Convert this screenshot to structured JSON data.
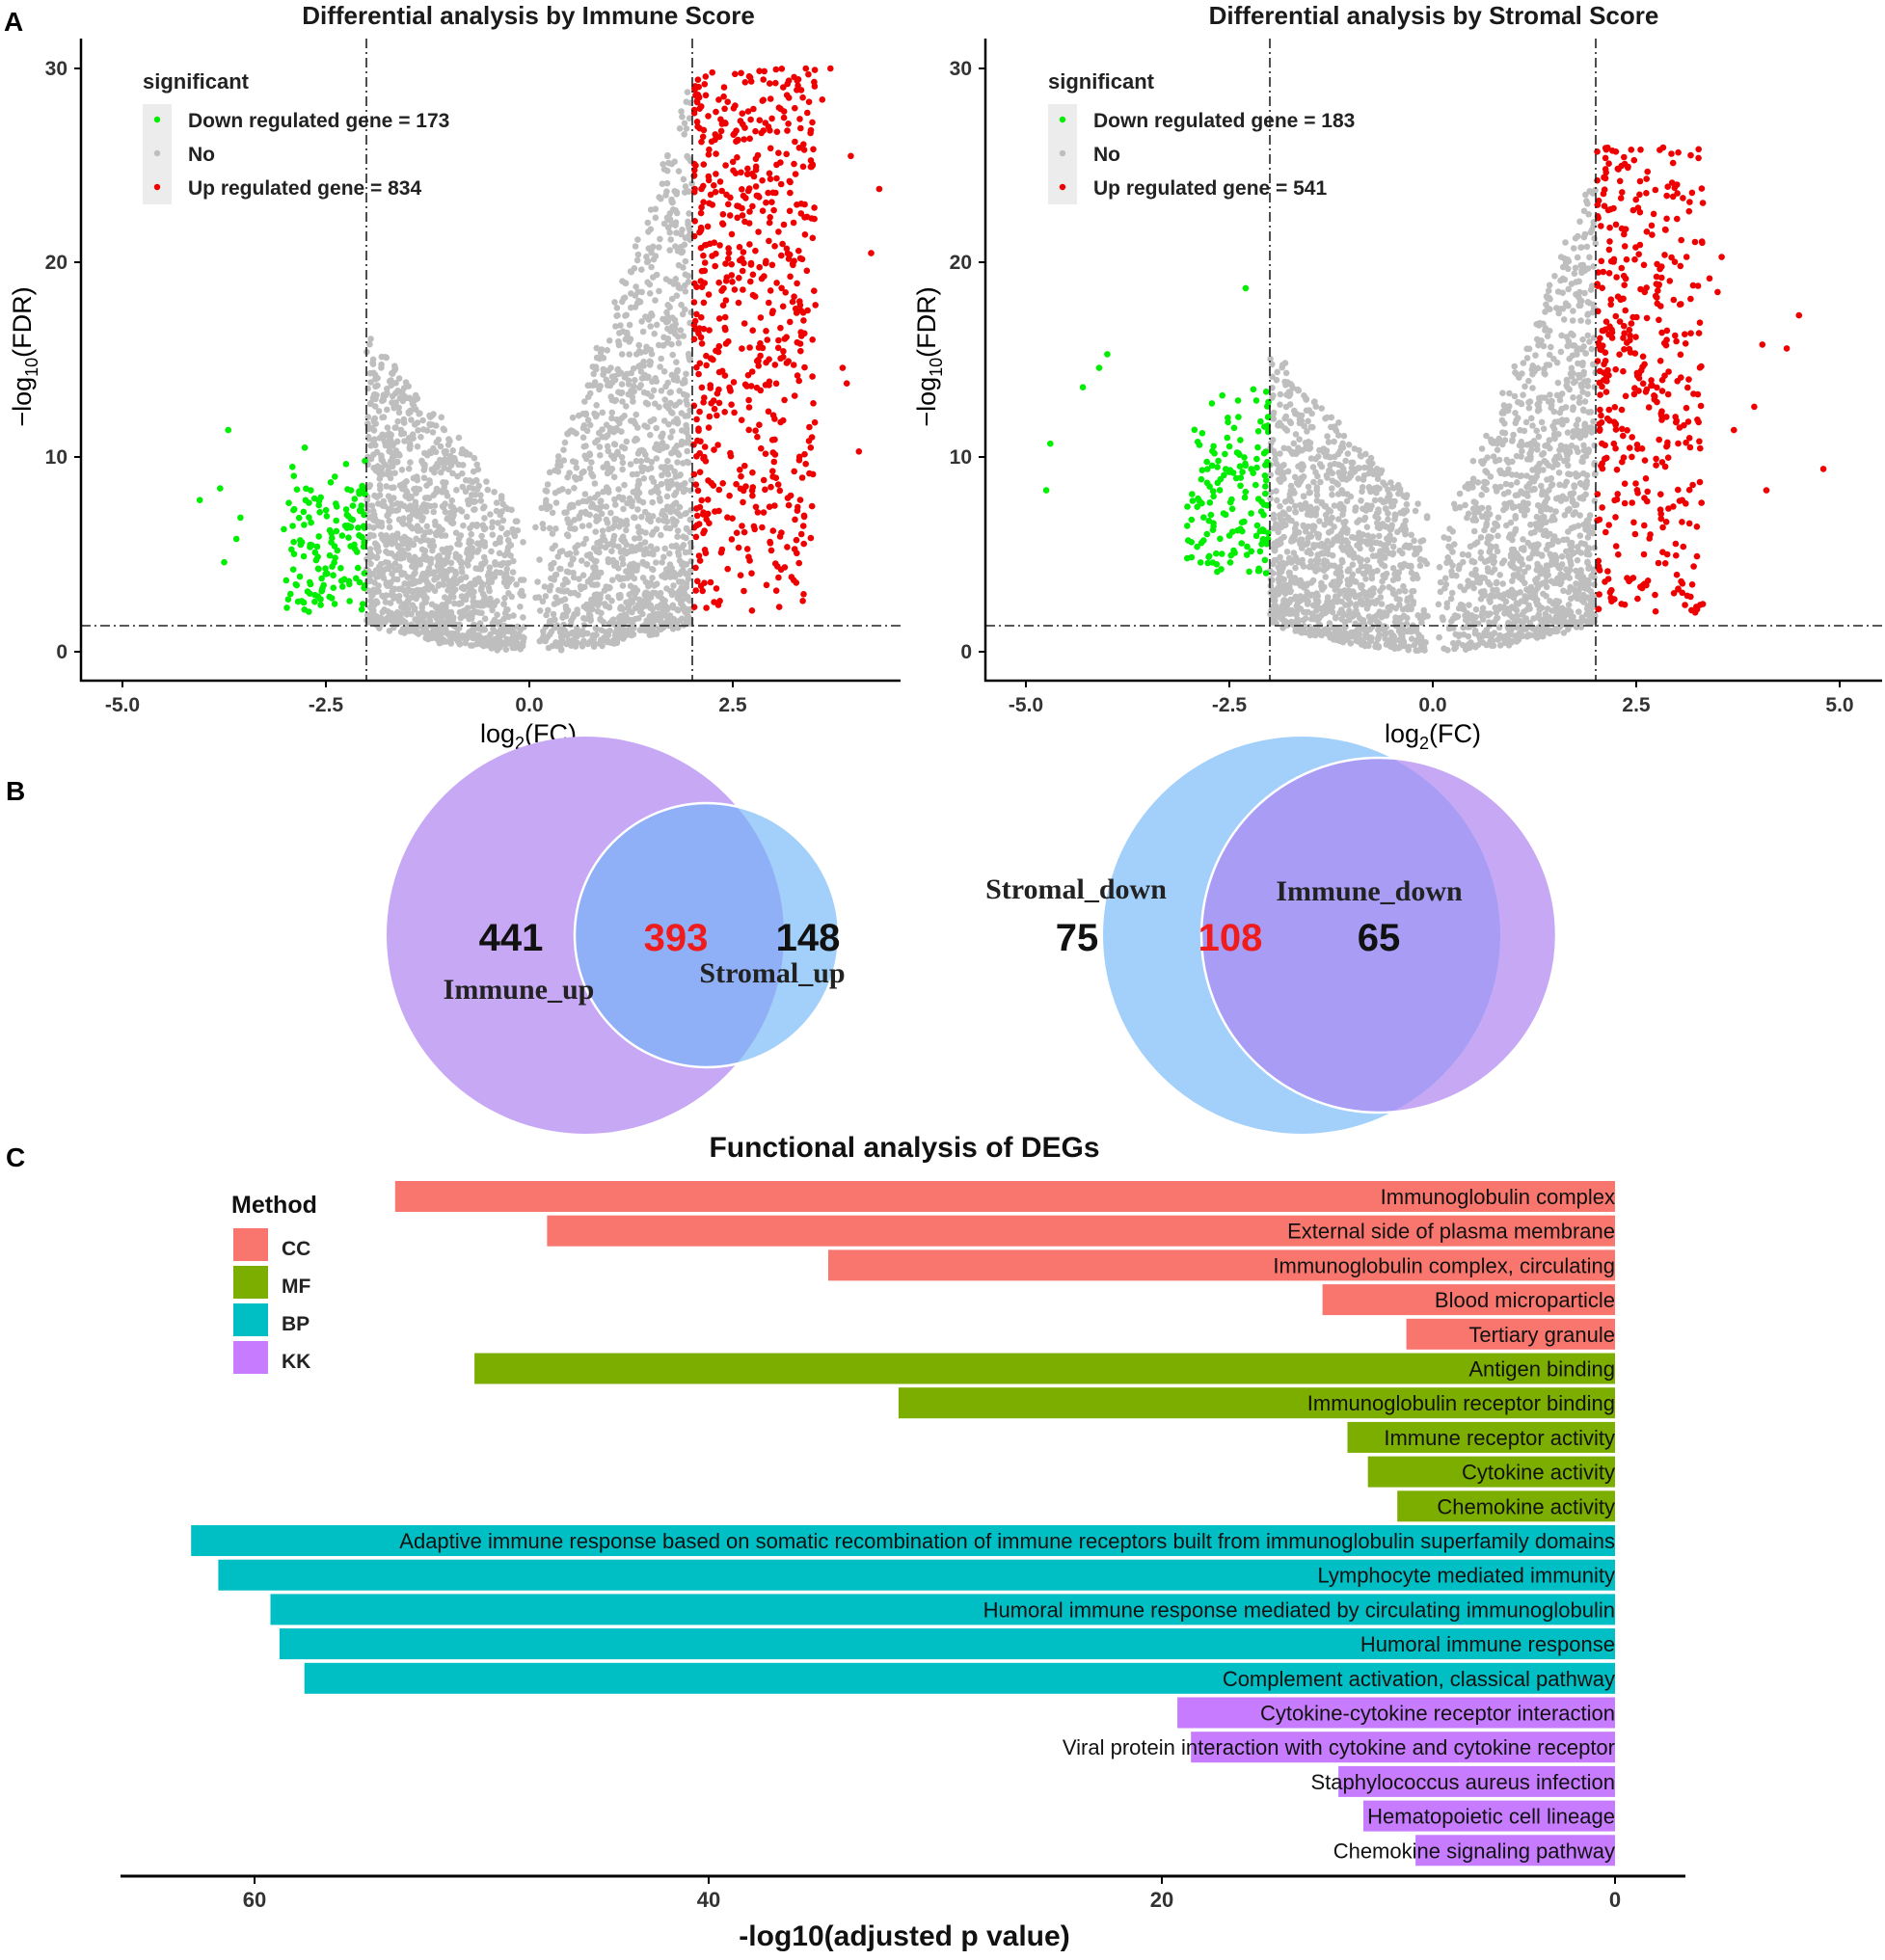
{
  "panels": {
    "a": "A",
    "b": "B",
    "c": "C"
  },
  "volcano": {
    "xlabel": "log2(FC)",
    "ylabel": "−log10(FDR)",
    "legend_title": "significant",
    "plots": [
      {
        "title": "Differential analysis by Immune Score",
        "down_label": "Down regulated gene = 173",
        "no_label": "No",
        "up_label": "Up regulated gene = 834"
      },
      {
        "title": "Differential analysis by Stromal Score",
        "down_label": "Down regulated gene = 183",
        "no_label": "No",
        "up_label": "Up regulated gene = 541"
      }
    ]
  },
  "venn": [
    {
      "left_label": "Immune_up",
      "right_label": "Stromal_up",
      "left_only": "441",
      "overlap": "393",
      "right_only": "148"
    },
    {
      "left_label": "Stromal_down",
      "right_label": "Immune_down",
      "left_only": "75",
      "overlap": "108",
      "right_only": "65"
    }
  ],
  "colors": {
    "down": "#00ee00",
    "no": "#bebebe",
    "up": "#ee0000",
    "CC": "#f8766d",
    "MF": "#7cae00",
    "BP": "#00bfc4",
    "KK": "#c77cff",
    "venn_purple": "#c7a8f5",
    "venn_blue": "#a3d0fa",
    "venn_overlap_up": "#8fb0f6",
    "venn_overlap_down": "#a89cf5"
  },
  "chart_data": [
    {
      "type": "scatter",
      "title": "Differential analysis by Immune Score",
      "xlabel": "log2(FC)",
      "ylabel": "−log10(FDR)",
      "xlim": [
        -5.5,
        4.5
      ],
      "ylim": [
        -1.4,
        31.2
      ],
      "xticks": [
        -5.0,
        -2.5,
        0.0,
        2.5
      ],
      "xtick_labels": [
        "-5.0",
        "-2.5",
        "0.0",
        "2.5"
      ],
      "yticks": [
        0,
        10,
        20,
        30
      ],
      "ytick_labels": [
        "0",
        "10",
        "20",
        "30"
      ],
      "thresholds": {
        "log2fc": [
          -2,
          2
        ],
        "neg_log10_fdr": 1.3
      },
      "series": [
        {
          "name": "Down regulated gene",
          "count": 173,
          "x_range": [
            -4.1,
            -2.0
          ],
          "y_range": [
            1.5,
            12.7
          ]
        },
        {
          "name": "No",
          "x_range": [
            -2.0,
            2.0
          ],
          "y_range": [
            0,
            30
          ]
        },
        {
          "name": "Up regulated gene",
          "count": 834,
          "x_range": [
            2.0,
            4.4
          ],
          "y_range": [
            2,
            30
          ]
        }
      ]
    },
    {
      "type": "scatter",
      "title": "Differential analysis by Stromal Score",
      "xlabel": "log2(FC)",
      "ylabel": "−log10(FDR)",
      "xlim": [
        -5.5,
        5.5
      ],
      "ylim": [
        -1.4,
        31.2
      ],
      "xticks": [
        -5.0,
        -2.5,
        0.0,
        2.5,
        5.0
      ],
      "xtick_labels": [
        "-5.0",
        "-2.5",
        "0.0",
        "2.5",
        "5.0"
      ],
      "yticks": [
        0,
        10,
        20,
        30
      ],
      "ytick_labels": [
        "0",
        "10",
        "20",
        "30"
      ],
      "thresholds": {
        "log2fc": [
          -2,
          2
        ],
        "neg_log10_fdr": 1.3
      },
      "series": [
        {
          "name": "Down regulated gene",
          "count": 183,
          "x_range": [
            -4.8,
            -2.0
          ],
          "y_range": [
            4,
            18.8
          ]
        },
        {
          "name": "No",
          "x_range": [
            -2.0,
            2.0
          ],
          "y_range": [
            0,
            24
          ]
        },
        {
          "name": "Up regulated gene",
          "count": 541,
          "x_range": [
            2.0,
            4.8
          ],
          "y_range": [
            2,
            26.5
          ]
        }
      ]
    },
    {
      "type": "bar",
      "orientation": "horizontal",
      "title": "Functional analysis of DEGs",
      "xlabel": "-log10(adjusted p value)",
      "xlim": [
        0,
        66
      ],
      "x_reversed": true,
      "xticks": [
        60,
        40,
        20,
        0
      ],
      "xtick_labels": [
        "60",
        "40",
        "20",
        "0"
      ],
      "legend_title": "Method",
      "legend": [
        "CC",
        "MF",
        "BP",
        "KK"
      ],
      "bars": [
        {
          "label": "Immunoglobulin complex",
          "value": 53.8,
          "method": "CC"
        },
        {
          "label": "External side of plasma membrane",
          "value": 47.1,
          "method": "CC"
        },
        {
          "label": "Immunoglobulin complex, circulating",
          "value": 34.7,
          "method": "CC"
        },
        {
          "label": "Blood microparticle",
          "value": 12.9,
          "method": "CC"
        },
        {
          "label": "Tertiary granule",
          "value": 9.2,
          "method": "CC"
        },
        {
          "label": "Antigen binding",
          "value": 50.3,
          "method": "MF"
        },
        {
          "label": "Immunoglobulin receptor binding",
          "value": 31.6,
          "method": "MF"
        },
        {
          "label": "Immune receptor activity",
          "value": 11.8,
          "method": "MF"
        },
        {
          "label": "Cytokine activity",
          "value": 10.9,
          "method": "MF"
        },
        {
          "label": "Chemokine activity",
          "value": 9.6,
          "method": "MF"
        },
        {
          "label": "Adaptive immune response based on somatic recombination of immune receptors built from immunoglobulin superfamily domains",
          "value": 62.8,
          "method": "BP"
        },
        {
          "label": "Lymphocyte mediated immunity",
          "value": 61.6,
          "method": "BP"
        },
        {
          "label": "Humoral immune response mediated by circulating immunoglobulin",
          "value": 59.3,
          "method": "BP"
        },
        {
          "label": "Humoral immune response",
          "value": 58.9,
          "method": "BP"
        },
        {
          "label": "Complement activation, classical pathway",
          "value": 57.8,
          "method": "BP"
        },
        {
          "label": "Cytokine-cytokine receptor interaction",
          "value": 19.3,
          "method": "KK"
        },
        {
          "label": "Viral protein interaction with cytokine and cytokine receptor",
          "value": 18.7,
          "method": "KK"
        },
        {
          "label": "Staphylococcus aureus infection",
          "value": 12.2,
          "method": "KK"
        },
        {
          "label": "Hematopoietic cell lineage",
          "value": 11.1,
          "method": "KK"
        },
        {
          "label": "Chemokine signaling pathway",
          "value": 8.8,
          "method": "KK"
        }
      ]
    }
  ]
}
